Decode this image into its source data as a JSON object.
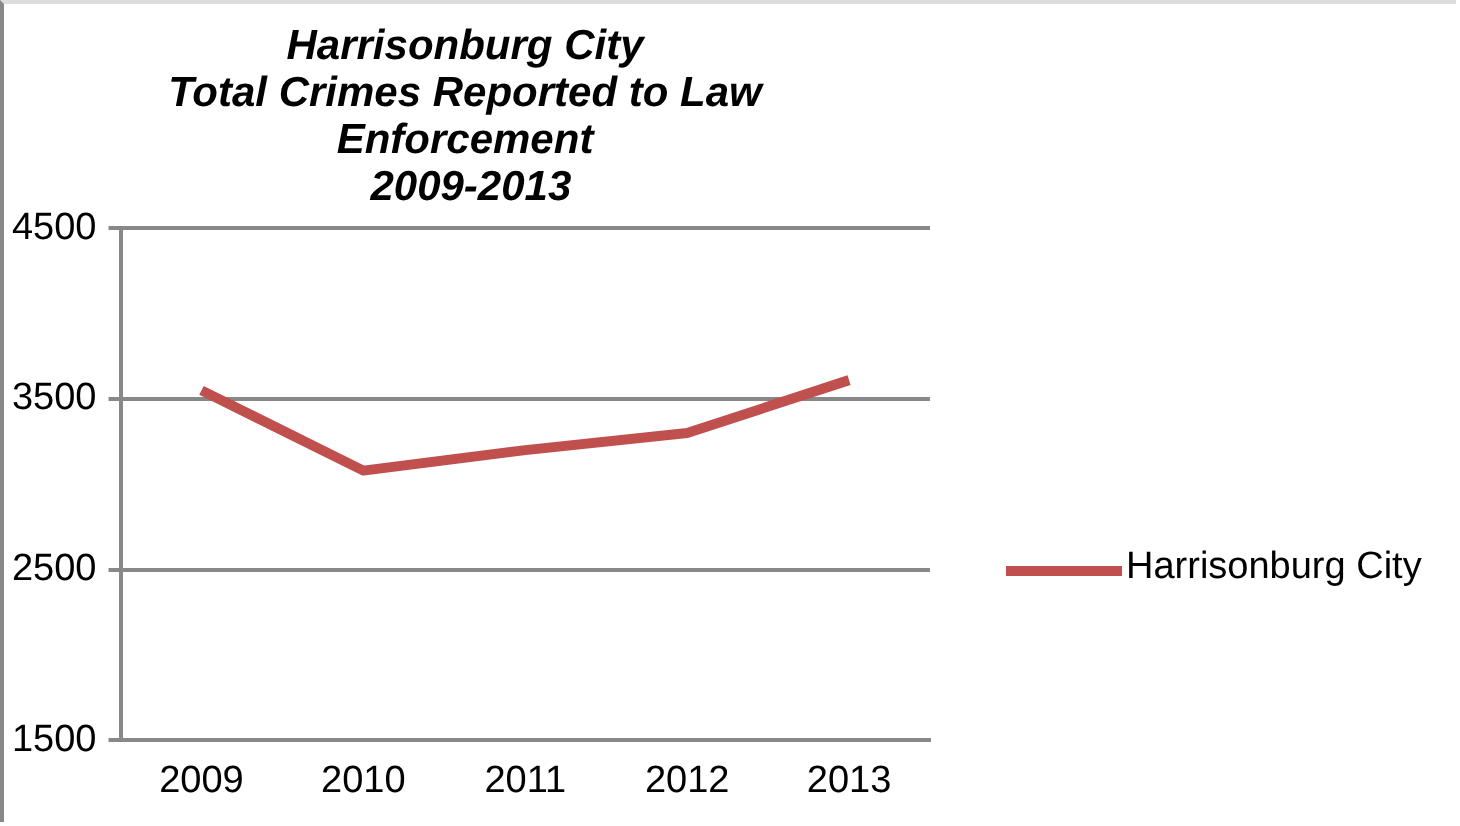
{
  "chart_data": {
    "type": "line",
    "title": "Harrisonburg City\nTotal Crimes Reported to Law\nEnforcement\n 2009-2013",
    "categories": [
      "2009",
      "2010",
      "2011",
      "2012",
      "2013"
    ],
    "series": [
      {
        "name": "Harrisonburg City",
        "color": "#c0504d",
        "values": [
          3550,
          3080,
          3200,
          3300,
          3610
        ]
      }
    ],
    "ylim": [
      1500,
      4500
    ],
    "yticks": [
      1500,
      2500,
      3500,
      4500
    ],
    "grid": "y",
    "legend": "right",
    "marker": "none"
  }
}
